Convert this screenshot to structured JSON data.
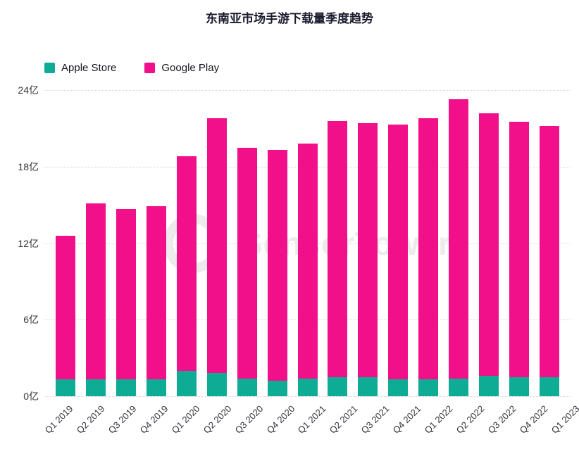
{
  "title": "东南亚市场手游下载量季度趋势",
  "watermark": "SensorTower",
  "colors": {
    "apple_store": "#0eac94",
    "google_play": "#f2108a",
    "title_text": "#1b1a2e",
    "axis_text": "#33333b",
    "gridline": "#d4d4d4"
  },
  "legend": [
    {
      "label": "Apple Store",
      "color": "#0eac94"
    },
    {
      "label": "Google Play",
      "color": "#f2108a"
    }
  ],
  "chart_data": {
    "type": "bar",
    "stacked": true,
    "title": "东南亚市场手游下载量季度趋势",
    "xlabel": "",
    "ylabel": "",
    "unit": "亿",
    "ylim": [
      0,
      24
    ],
    "y_ticks": [
      "0亿",
      "6亿",
      "12亿",
      "18亿",
      "24亿"
    ],
    "grid": "horizontal-dotted",
    "legend_position": "top-left",
    "categories": [
      "Q1 2019",
      "Q2 2019",
      "Q3 2019",
      "Q4 2019",
      "Q1 2020",
      "Q2 2020",
      "Q3 2020",
      "Q4 2020",
      "Q1 2021",
      "Q2 2021",
      "Q3 2021",
      "Q4 2021",
      "Q1 2022",
      "Q2 2022",
      "Q3 2022",
      "Q4 2022",
      "Q1 2023"
    ],
    "series": [
      {
        "name": "Apple Store",
        "color": "#0eac94",
        "values": [
          1.3,
          1.3,
          1.3,
          1.3,
          2.0,
          1.8,
          1.4,
          1.2,
          1.4,
          1.5,
          1.5,
          1.3,
          1.3,
          1.4,
          1.6,
          1.5,
          1.5
        ]
      },
      {
        "name": "Google Play",
        "color": "#f2108a",
        "values": [
          11.3,
          13.8,
          13.4,
          13.6,
          16.8,
          20.0,
          18.1,
          18.1,
          18.4,
          20.1,
          19.9,
          20.0,
          20.5,
          21.9,
          20.6,
          20.0,
          19.7
        ]
      }
    ],
    "totals": [
      12.6,
      15.1,
      14.7,
      14.9,
      18.8,
      21.8,
      19.5,
      19.3,
      19.8,
      21.6,
      21.4,
      21.3,
      21.8,
      23.3,
      22.2,
      21.5,
      21.2
    ]
  }
}
